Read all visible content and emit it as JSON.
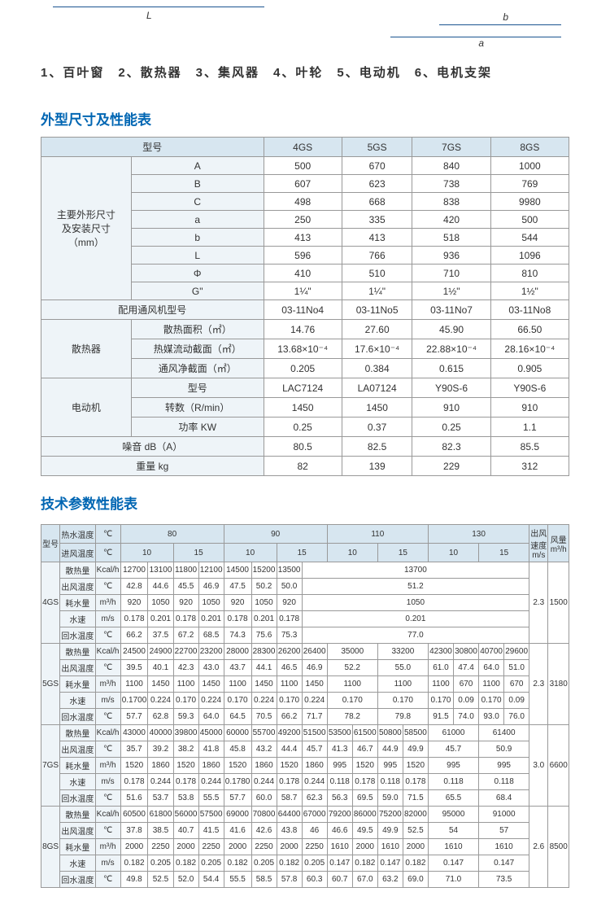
{
  "diagram": {
    "L": "L",
    "b": "b",
    "a": "a"
  },
  "legend": "1、百叶窗　2、散热器　3、集风器　4、叶轮　5、电动机　6、电机支架",
  "section1_title": "外型尺寸及性能表",
  "section2_title": "技术参数性能表",
  "colors": {
    "header_bg": "#d7e6f0",
    "rowhdr_bg": "#eef4f8",
    "title": "#0066b3",
    "border": "#999999",
    "text": "#333333"
  },
  "table1": {
    "model_label": "型号",
    "models": [
      "4GS",
      "5GS",
      "7GS",
      "8GS"
    ],
    "dim_group": "主要外形尺寸\n及安装尺寸\n（mm）",
    "dims": [
      {
        "k": "A",
        "v": [
          "500",
          "670",
          "840",
          "1000"
        ]
      },
      {
        "k": "B",
        "v": [
          "607",
          "623",
          "738",
          "769"
        ]
      },
      {
        "k": "C",
        "v": [
          "498",
          "668",
          "838",
          "9980"
        ]
      },
      {
        "k": "a",
        "v": [
          "250",
          "335",
          "420",
          "500"
        ]
      },
      {
        "k": "b",
        "v": [
          "413",
          "413",
          "518",
          "544"
        ]
      },
      {
        "k": "L",
        "v": [
          "596",
          "766",
          "936",
          "1096"
        ]
      },
      {
        "k": "Φ",
        "v": [
          "410",
          "510",
          "710",
          "810"
        ]
      },
      {
        "k": "G\"",
        "v": [
          "1¼\"",
          "1¼\"",
          "1½\"",
          "1½\""
        ]
      }
    ],
    "fan_model": {
      "label": "配用通风机型号",
      "v": [
        "03-11No4",
        "03-11No5",
        "03-11No7",
        "03-11No8"
      ]
    },
    "radiator": {
      "label": "散热器",
      "rows": [
        {
          "k": "散热面积（㎡）",
          "v": [
            "14.76",
            "27.60",
            "45.90",
            "66.50"
          ]
        },
        {
          "k": "热媒流动截面（㎡）",
          "v": [
            "13.68×10⁻⁴",
            "17.6×10⁻⁴",
            "22.88×10⁻⁴",
            "28.16×10⁻⁴"
          ]
        },
        {
          "k": "通风净截面（㎡）",
          "v": [
            "0.205",
            "0.384",
            "0.615",
            "0.905"
          ]
        }
      ]
    },
    "motor": {
      "label": "电动机",
      "rows": [
        {
          "k": "型号",
          "v": [
            "LAC7124",
            "LA07124",
            "Y90S-6",
            "Y90S-6"
          ]
        },
        {
          "k": "转数（R/min）",
          "v": [
            "1450",
            "1450",
            "910",
            "910"
          ]
        },
        {
          "k": "功率 KW",
          "v": [
            "0.25",
            "0.37",
            "0.25",
            "1.1"
          ]
        }
      ]
    },
    "noise": {
      "label": "噪音 dB（A）",
      "v": [
        "80.5",
        "82.5",
        "82.3",
        "85.5"
      ]
    },
    "weight": {
      "label": "重量 kg",
      "v": [
        "82",
        "139",
        "229",
        "312"
      ]
    }
  },
  "table2": {
    "h": {
      "model": "型号",
      "hotwater": "热水温度",
      "inlet": "进风温度",
      "c": "℃",
      "outspeed": "出风\n速度\nm/s",
      "airflow": "风量\nm³/h"
    },
    "temps": [
      "80",
      "90",
      "110",
      "130"
    ],
    "subtemps": [
      "10",
      "15"
    ],
    "metrics": [
      {
        "k": "散热量",
        "u": "Kcal/h"
      },
      {
        "k": "出风温度",
        "u": "℃"
      },
      {
        "k": "耗水量",
        "u": "m³/h"
      },
      {
        "k": "水速",
        "u": "m/s"
      },
      {
        "k": "回水温度",
        "u": "℃"
      }
    ],
    "rows": [
      {
        "m": "4GS",
        "spd": "2.3",
        "flow": "1500",
        "d": [
          [
            "12700",
            "13100",
            "11800",
            "12100",
            "14500",
            "15200",
            "13500",
            "13700",
            "",
            "",
            "",
            "",
            "",
            "",
            "",
            ""
          ],
          [
            "42.8",
            "44.6",
            "45.5",
            "46.9",
            "47.5",
            "50.2",
            "50.0",
            "51.2",
            "",
            "",
            "",
            "",
            "",
            "",
            "",
            ""
          ],
          [
            "920",
            "1050",
            "920",
            "1050",
            "920",
            "1050",
            "920",
            "1050",
            "",
            "",
            "",
            "",
            "",
            "",
            "",
            ""
          ],
          [
            "0.178",
            "0.201",
            "0.178",
            "0.201",
            "0.178",
            "0.201",
            "0.178",
            "0.201",
            "",
            "",
            "",
            "",
            "",
            "",
            "",
            ""
          ],
          [
            "66.2",
            "37.5",
            "67.2",
            "68.5",
            "74.3",
            "75.6",
            "75.3",
            "77.0",
            "",
            "",
            "",
            "",
            "",
            "",
            "",
            ""
          ]
        ]
      },
      {
        "m": "5GS",
        "spd": "2.3",
        "flow": "3180",
        "d": [
          [
            "24500",
            "24900",
            "22700",
            "23200",
            "28000",
            "28300",
            "26200",
            "26400",
            "35000",
            "",
            "33200",
            "",
            "42300",
            "30800",
            "40700",
            "29600"
          ],
          [
            "39.5",
            "40.1",
            "42.3",
            "43.0",
            "43.7",
            "44.1",
            "46.5",
            "46.9",
            "52.2",
            "",
            "55.0",
            "",
            "61.0",
            "47.4",
            "64.0",
            "51.0"
          ],
          [
            "1100",
            "1450",
            "1100",
            "1450",
            "1100",
            "1450",
            "1100",
            "1450",
            "1100",
            "",
            "1100",
            "",
            "1100",
            "670",
            "1100",
            "670"
          ],
          [
            "0.1700",
            "0.224",
            "0.170",
            "0.224",
            "0.170",
            "0.224",
            "0.170",
            "0.224",
            "0.170",
            "",
            "0.170",
            "",
            "0.170",
            "0.09",
            "0.170",
            "0.09"
          ],
          [
            "57.7",
            "62.8",
            "59.3",
            "64.0",
            "64.5",
            "70.5",
            "66.2",
            "71.7",
            "78.2",
            "",
            "79.8",
            "",
            "91.5",
            "74.0",
            "93.0",
            "76.0"
          ]
        ]
      },
      {
        "m": "7GS",
        "spd": "3.0",
        "flow": "6600",
        "d": [
          [
            "43000",
            "40000",
            "39800",
            "45000",
            "60000",
            "55700",
            "49200",
            "51500",
            "53500",
            "61500",
            "50800",
            "58500",
            "61000",
            "",
            "61400",
            ""
          ],
          [
            "35.7",
            "39.2",
            "38.2",
            "41.8",
            "45.8",
            "43.2",
            "44.4",
            "45.7",
            "41.3",
            "46.7",
            "44.9",
            "49.9",
            "45.7",
            "",
            "50.9",
            ""
          ],
          [
            "1520",
            "1860",
            "1520",
            "1860",
            "1520",
            "1860",
            "1520",
            "1860",
            "995",
            "1520",
            "995",
            "1520",
            "995",
            "",
            "995",
            ""
          ],
          [
            "0.178",
            "0.244",
            "0.178",
            "0.244",
            "0.1780",
            "0.244",
            "0.178",
            "0.244",
            "0.118",
            "0.178",
            "0.118",
            "0.178",
            "0.118",
            "",
            "0.118",
            ""
          ],
          [
            "51.6",
            "53.7",
            "53.8",
            "55.5",
            "57.7",
            "60.0",
            "58.7",
            "62.3",
            "56.3",
            "69.5",
            "59.0",
            "71.5",
            "65.5",
            "",
            "68.4",
            ""
          ]
        ]
      },
      {
        "m": "8GS",
        "spd": "2.6",
        "flow": "8500",
        "d": [
          [
            "60500",
            "61800",
            "56000",
            "57500",
            "69000",
            "70800",
            "64400",
            "67000",
            "79200",
            "86000",
            "75200",
            "82000",
            "95000",
            "",
            "91000",
            ""
          ],
          [
            "37.8",
            "38.5",
            "40.7",
            "41.5",
            "41.6",
            "42.6",
            "43.8",
            "46",
            "46.6",
            "49.5",
            "49.9",
            "52.5",
            "54",
            "",
            "57",
            ""
          ],
          [
            "2000",
            "2250",
            "2000",
            "2250",
            "2000",
            "2250",
            "2000",
            "2250",
            "1610",
            "2000",
            "1610",
            "2000",
            "1610",
            "",
            "1610",
            ""
          ],
          [
            "0.182",
            "0.205",
            "0.182",
            "0.205",
            "0.182",
            "0.205",
            "0.182",
            "0.205",
            "0.147",
            "0.182",
            "0.147",
            "0.182",
            "0.147",
            "",
            "0.147",
            ""
          ],
          [
            "49.8",
            "52.5",
            "52.0",
            "54.4",
            "55.5",
            "58.5",
            "57.8",
            "60.3",
            "60.7",
            "67.0",
            "63.2",
            "69.0",
            "71.0",
            "",
            "73.5",
            ""
          ]
        ]
      }
    ]
  }
}
